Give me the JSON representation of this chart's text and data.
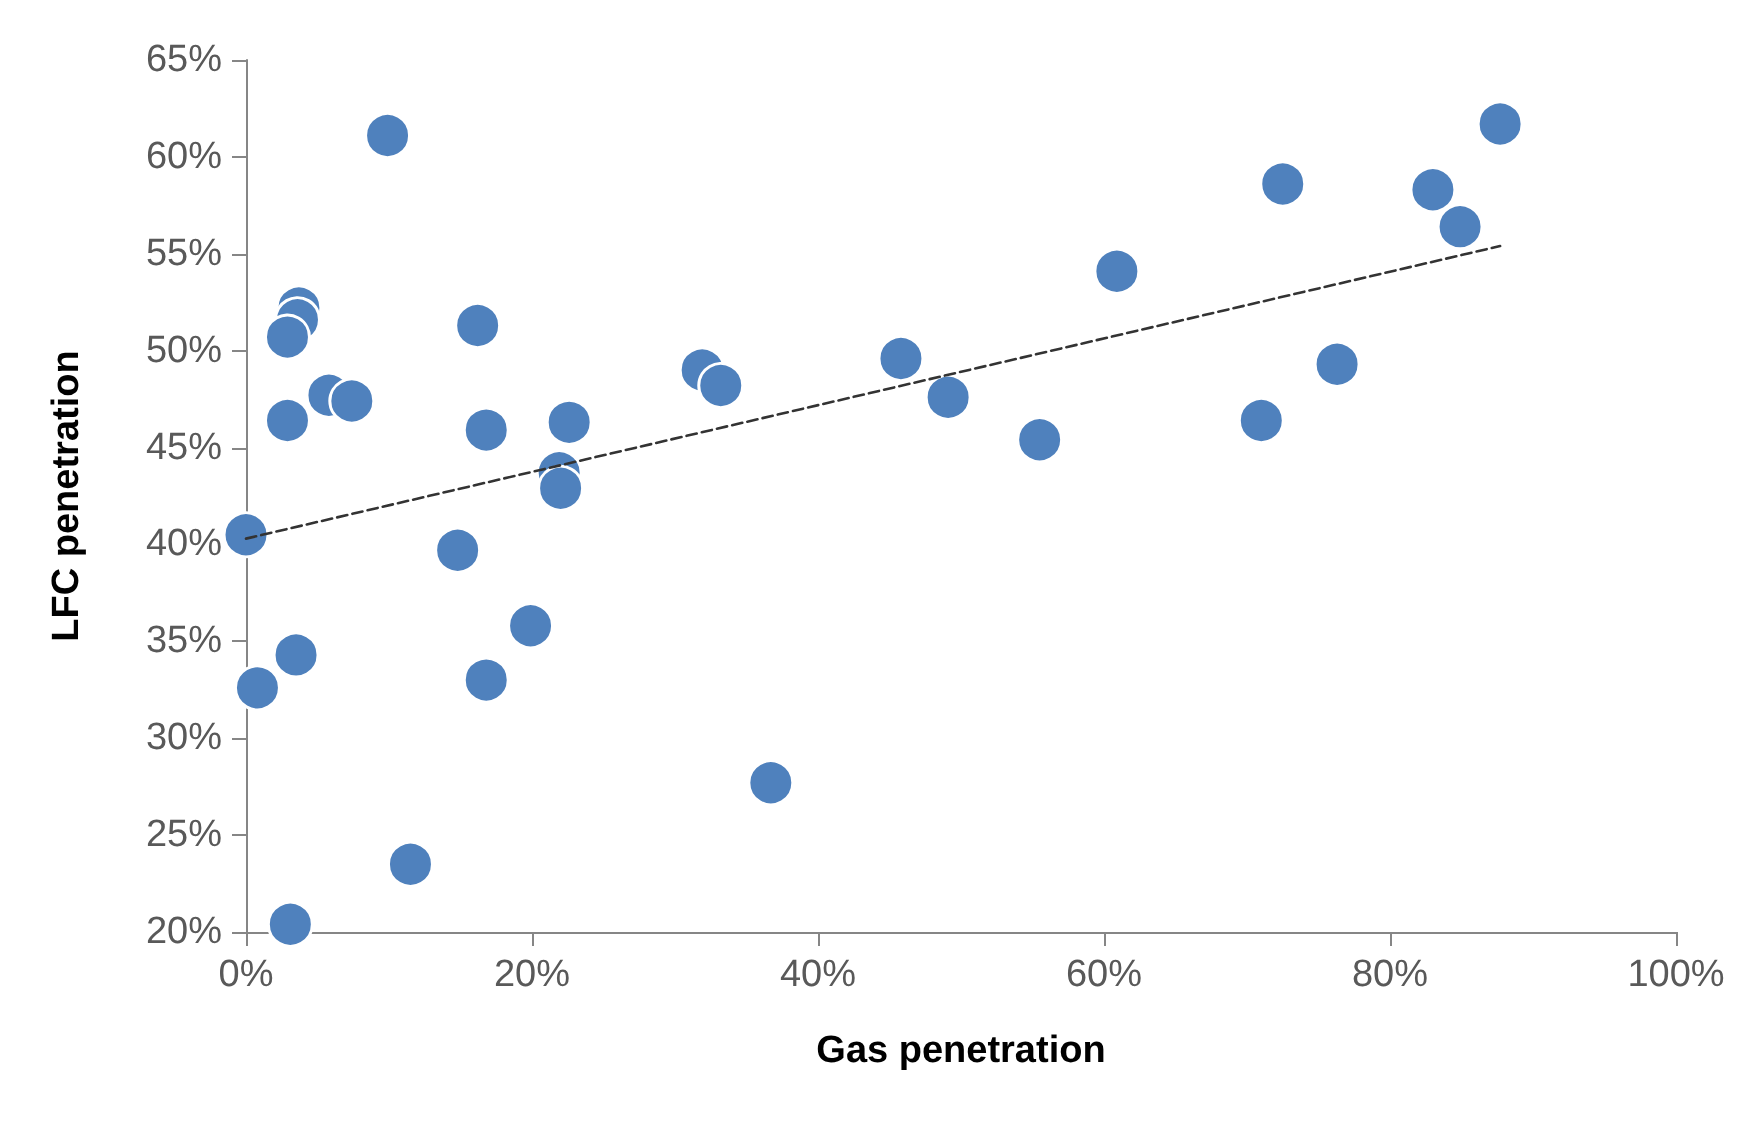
{
  "chart_data": {
    "type": "scatter",
    "xlabel": "Gas penetration",
    "ylabel": "LFC penetration",
    "marker": "circle",
    "grid": false,
    "xlim": [
      0,
      100
    ],
    "xticks": [
      {
        "value": 0,
        "label": "0%"
      },
      {
        "value": 20,
        "label": "20%"
      },
      {
        "value": 40,
        "label": "40%"
      },
      {
        "value": 60,
        "label": "60%"
      },
      {
        "value": 80,
        "label": "80%"
      },
      {
        "value": 100,
        "label": "100%"
      }
    ],
    "ylim": [
      20,
      65
    ],
    "yticks": [
      {
        "value": 20,
        "label": "20%"
      },
      {
        "value": 25,
        "label": "25%"
      },
      {
        "value": 30,
        "label": "30%"
      },
      {
        "value": 35,
        "label": "35%"
      },
      {
        "value": 40,
        "label": "40%"
      },
      {
        "value": 45,
        "label": "45%"
      },
      {
        "value": 50,
        "label": "50%"
      },
      {
        "value": 55,
        "label": "55%"
      },
      {
        "value": 60,
        "label": "60%"
      },
      {
        "value": 65,
        "label": "65%"
      }
    ],
    "series": [
      {
        "color": "#4f81bd",
        "x": [
          9.9,
          3.7,
          3.6,
          2.9,
          16.2,
          5.8,
          7.4,
          2.9,
          16.8,
          22.6,
          21.9,
          22.0,
          0.0,
          14.8,
          19.9,
          3.5,
          16.8,
          0.8,
          11.5,
          3.1,
          87.7,
          72.5,
          83.0,
          84.9,
          60.9,
          71.0,
          45.8,
          49.1,
          55.5,
          36.7,
          31.9,
          33.2,
          76.3
        ],
        "values": [
          61.1,
          52.2,
          51.6,
          50.7,
          51.3,
          47.7,
          47.4,
          46.4,
          45.9,
          46.3,
          43.7,
          42.9,
          40.5,
          39.7,
          35.8,
          34.3,
          33.0,
          32.6,
          23.5,
          20.4,
          61.7,
          58.6,
          58.3,
          56.4,
          54.1,
          46.4,
          49.6,
          47.6,
          45.4,
          27.7,
          49.0,
          48.2,
          49.3
        ]
      },
      {
        "type": "line",
        "color": "#333333",
        "line_style": "dashed",
        "marker": "none",
        "x": [
          0.0,
          87.7
        ],
        "values": [
          40.3,
          55.4
        ]
      }
    ]
  }
}
